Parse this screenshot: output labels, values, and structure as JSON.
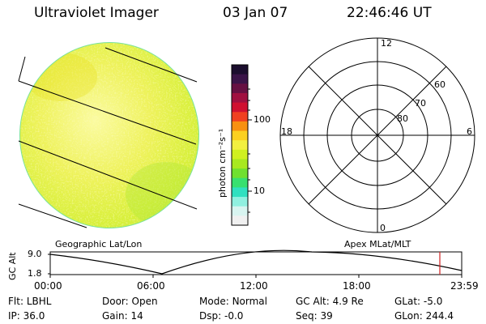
{
  "header": {
    "instrument": "Ultraviolet Imager",
    "date": "03 Jan 07",
    "time": "22:46:46 UT"
  },
  "earth_image": {
    "colors": {
      "base": "#e2f23a",
      "pale": "#fbfba0",
      "warm": "#e8e020",
      "green": "#b6e83a",
      "rim": "#79e29a"
    }
  },
  "colorbar": {
    "unit_label": "photon cm⁻²s⁻¹",
    "ticks": [
      "100",
      "10"
    ],
    "colors": [
      "#1b0e2e",
      "#3a1448",
      "#661042",
      "#a01040",
      "#d01030",
      "#f04020",
      "#f89010",
      "#fcd020",
      "#f2f040",
      "#d0f020",
      "#a8e820",
      "#70e030",
      "#38e070",
      "#30e0c0",
      "#90f0e0",
      "#d8f4f0",
      "#f0f0f0"
    ]
  },
  "polar_plot": {
    "mlt_labels": {
      "top": "12",
      "left": "18",
      "right": "6",
      "bottom": "0"
    },
    "lat_labels": [
      "60",
      "70",
      "80"
    ]
  },
  "altitude_plot": {
    "axis_title": "GC Alt",
    "y_ticks": [
      "9.0",
      "1.8"
    ],
    "left_label": "Geographic Lat/Lon",
    "right_label": "Apex MLat/MLT",
    "x_ticks": [
      "00:00",
      "06:00",
      "12:00",
      "18:00",
      "23:59"
    ],
    "marker_color": "#d02020"
  },
  "status": {
    "flt": {
      "label": "Flt:",
      "value": "LBHL"
    },
    "ip": {
      "label": "IP:",
      "value": "36.0"
    },
    "door": {
      "label": "Door:",
      "value": "Open"
    },
    "gain": {
      "label": "Gain:",
      "value": "14"
    },
    "mode": {
      "label": "Mode:",
      "value": "Normal"
    },
    "dsp": {
      "label": "Dsp:",
      "value": "-0.0"
    },
    "gcalt": {
      "label": "GC Alt:",
      "value": "4.9 Re"
    },
    "seq": {
      "label": "Seq:",
      "value": "39"
    },
    "glat": {
      "label": "GLat:",
      "value": "-5.0"
    },
    "glon": {
      "label": "GLon:",
      "value": "244.4"
    }
  }
}
